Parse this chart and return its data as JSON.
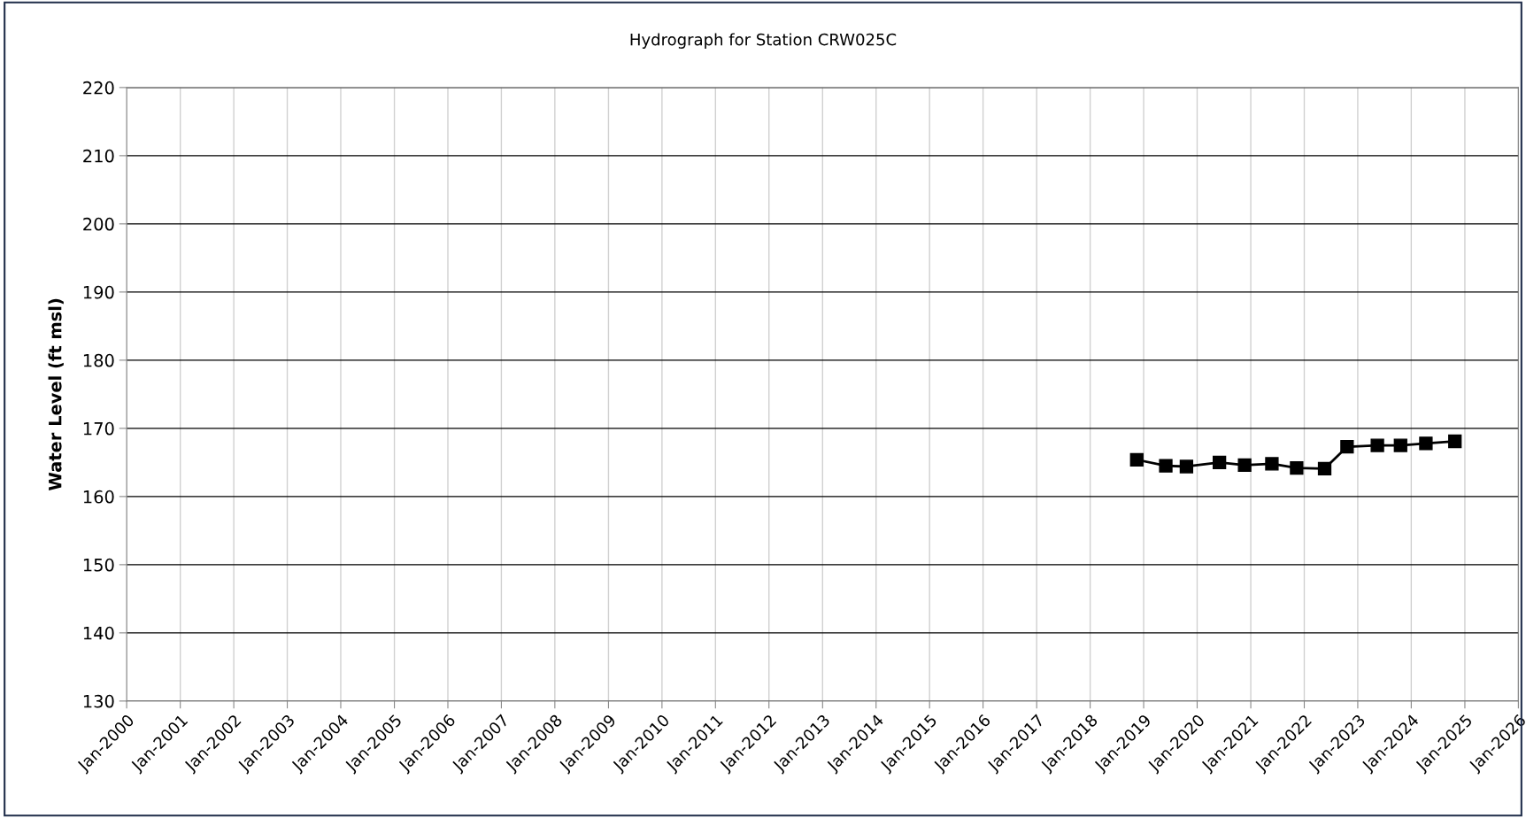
{
  "chart_data": {
    "type": "line",
    "title": "Hydrograph for Station CRW025C",
    "ylabel": "Water Level (ft msl)",
    "x": [
      "2018-11-15",
      "2019-06-01",
      "2019-10-20",
      "2020-06-01",
      "2020-11-20",
      "2021-05-25",
      "2021-11-10",
      "2022-05-20",
      "2022-10-20",
      "2023-05-15",
      "2023-10-20",
      "2024-04-10",
      "2024-10-25"
    ],
    "series": [
      {
        "color": "#000000",
        "values": [
          165.4,
          164.5,
          164.4,
          165.0,
          164.6,
          164.8,
          164.2,
          164.1,
          167.3,
          167.5,
          167.5,
          167.8,
          168.1
        ]
      }
    ],
    "marker": "square",
    "line_style": "solid",
    "grid": true,
    "legend": false,
    "ylim": [
      130,
      220
    ],
    "yticks": [
      130,
      140,
      150,
      160,
      170,
      180,
      190,
      200,
      210,
      220
    ],
    "xlim": [
      "2000-01-01",
      "2026-01-01"
    ],
    "xticks": [
      {
        "value": "2000-01",
        "label": "Jan-2000"
      },
      {
        "value": "2001-01",
        "label": "Jan-2001"
      },
      {
        "value": "2002-01",
        "label": "Jan-2002"
      },
      {
        "value": "2003-01",
        "label": "Jan-2003"
      },
      {
        "value": "2004-01",
        "label": "Jan-2004"
      },
      {
        "value": "2005-01",
        "label": "Jan-2005"
      },
      {
        "value": "2006-01",
        "label": "Jan-2006"
      },
      {
        "value": "2007-01",
        "label": "Jan-2007"
      },
      {
        "value": "2008-01",
        "label": "Jan-2008"
      },
      {
        "value": "2009-01",
        "label": "Jan-2009"
      },
      {
        "value": "2010-01",
        "label": "Jan-2010"
      },
      {
        "value": "2011-01",
        "label": "Jan-2011"
      },
      {
        "value": "2012-01",
        "label": "Jan-2012"
      },
      {
        "value": "2013-01",
        "label": "Jan-2013"
      },
      {
        "value": "2014-01",
        "label": "Jan-2014"
      },
      {
        "value": "2015-01",
        "label": "Jan-2015"
      },
      {
        "value": "2016-01",
        "label": "Jan-2016"
      },
      {
        "value": "2017-01",
        "label": "Jan-2017"
      },
      {
        "value": "2018-01",
        "label": "Jan-2018"
      },
      {
        "value": "2019-01",
        "label": "Jan-2019"
      },
      {
        "value": "2020-01",
        "label": "Jan-2020"
      },
      {
        "value": "2021-01",
        "label": "Jan-2021"
      },
      {
        "value": "2022-01",
        "label": "Jan-2022"
      },
      {
        "value": "2023-01",
        "label": "Jan-2023"
      },
      {
        "value": "2024-01",
        "label": "Jan-2024"
      },
      {
        "value": "2025-01",
        "label": "Jan-2025"
      },
      {
        "value": "2026-01",
        "label": "Jan-2026"
      }
    ]
  }
}
